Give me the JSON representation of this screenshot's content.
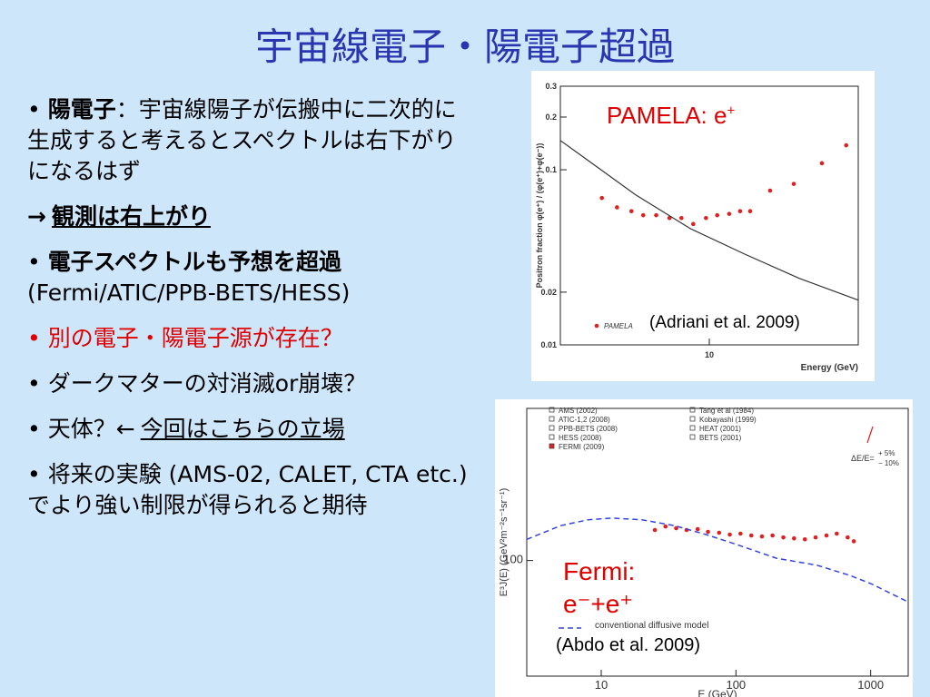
{
  "title": "宇宙線電子・陽電子超過",
  "bullets": [
    {
      "bullet": true,
      "parts": [
        {
          "text": "陽電子",
          "bold": true
        },
        {
          "text": "：宇宙線陽子が伝搬中に二次的に生成すると考えるとスペクトルは右下がりになるはず"
        }
      ]
    },
    {
      "bullet": false,
      "parts": [
        {
          "text": "→",
          "bold": true
        },
        {
          "text": "観測は右上がり",
          "bold": true,
          "underline": true
        }
      ]
    },
    {
      "bullet": true,
      "parts": [
        {
          "text": "電子スペクトルも予想を超過",
          "bold": true
        },
        {
          "text": "(Fermi/ATIC/PPB-BETS/HESS)",
          "block": true
        }
      ]
    },
    {
      "bullet": true,
      "color": "#e00000",
      "parts": [
        {
          "text": "別の電子・陽電子源が存在？"
        }
      ]
    },
    {
      "bullet": true,
      "parts": [
        {
          "text": "ダークマターの対消滅or崩壊？"
        }
      ]
    },
    {
      "bullet": true,
      "parts": [
        {
          "text": "天体？←"
        },
        {
          "text": "今回はこちらの立場",
          "underline": true
        }
      ]
    },
    {
      "bullet": true,
      "parts": [
        {
          "text": "将来の実験 (AMS-02, CALET, CTA etc.)でより強い制限が得られると期待"
        }
      ]
    }
  ],
  "figures": [
    {
      "type": "scatter",
      "caption": "PAMELA: e",
      "caption_sup": "+",
      "citation": "(Adriani et al. 2009)",
      "xlabel": "Energy (GeV)",
      "ylabel": "Positron fraction  φ(e⁺) / (φ(e⁺)+φ(e⁻))",
      "log_x": true,
      "log_y": true,
      "xlim": [
        1,
        100
      ],
      "ylim": [
        0.01,
        0.3
      ],
      "xticks": [
        10
      ],
      "yticks": [
        0.01,
        0.02,
        0.1,
        0.2,
        0.3
      ],
      "series": [
        {
          "name": "PAMELA",
          "color": "#e02020",
          "style": "points",
          "x": [
            1.9,
            2.4,
            3.0,
            3.6,
            4.4,
            5.4,
            6.5,
            7.8,
            9.5,
            11.3,
            13.6,
            16.1,
            18.8,
            25.6,
            36.9,
            57,
            83
          ],
          "values": [
            0.069,
            0.061,
            0.058,
            0.055,
            0.055,
            0.053,
            0.053,
            0.049,
            0.053,
            0.055,
            0.056,
            0.058,
            0.058,
            0.076,
            0.083,
            0.109,
            0.138
          ]
        },
        {
          "color": "#333333",
          "style": "line",
          "x": [
            1,
            3.2,
            7.5,
            17.3,
            40,
            100
          ],
          "values": [
            0.147,
            0.072,
            0.046,
            0.033,
            0.024,
            0.018
          ]
        }
      ]
    },
    {
      "type": "scatter",
      "caption": [
        "Fermi:",
        "e⁻+e⁺"
      ],
      "citation": "(Abdo et al. 2009)",
      "xlabel": "E (GeV)",
      "ylabel": "E³J(E) (GeV²m⁻²s⁻¹sr⁻¹)",
      "log_x": true,
      "log_y": true,
      "xlim": [
        2.8,
        1900
      ],
      "ylim": [
        37,
        370
      ],
      "xticks": [
        10,
        100,
        1000
      ],
      "yticks": [
        100
      ],
      "legend": [
        "AMS (2002)",
        "ATIC-1,2 (2008)",
        "PPB-BETS (2008)",
        "HESS (2008)",
        "Tang et al (1984)",
        "Kobayashi (1999)",
        "HEAT (2001)",
        "BETS (2001)"
      ],
      "resolution_label": "ΔE/E=",
      "resolution_bounds": [
        "+ 5%",
        "− 10%"
      ],
      "series": [
        {
          "name": "FERMI (2009)",
          "color": "#e02020",
          "style": "points",
          "x": [
            25,
            30,
            36,
            43,
            52,
            62,
            75,
            90,
            108,
            130,
            156,
            187,
            225,
            270,
            325,
            390,
            470,
            560,
            675,
            750
          ],
          "values": [
            130,
            134,
            132,
            130,
            131,
            128,
            127,
            125,
            126,
            124,
            123,
            124,
            122,
            121,
            120,
            122,
            124,
            126,
            122,
            118
          ]
        },
        {
          "name": "conventional diffusive model",
          "color": "#3344dd",
          "style": "dashed",
          "x": [
            2.8,
            5,
            8,
            12,
            20,
            35,
            60,
            100,
            200,
            400,
            700,
            1000,
            1900
          ],
          "values": [
            120,
            135,
            142,
            144,
            142,
            135,
            125,
            115,
            102,
            96,
            88,
            82,
            70
          ]
        }
      ]
    }
  ]
}
